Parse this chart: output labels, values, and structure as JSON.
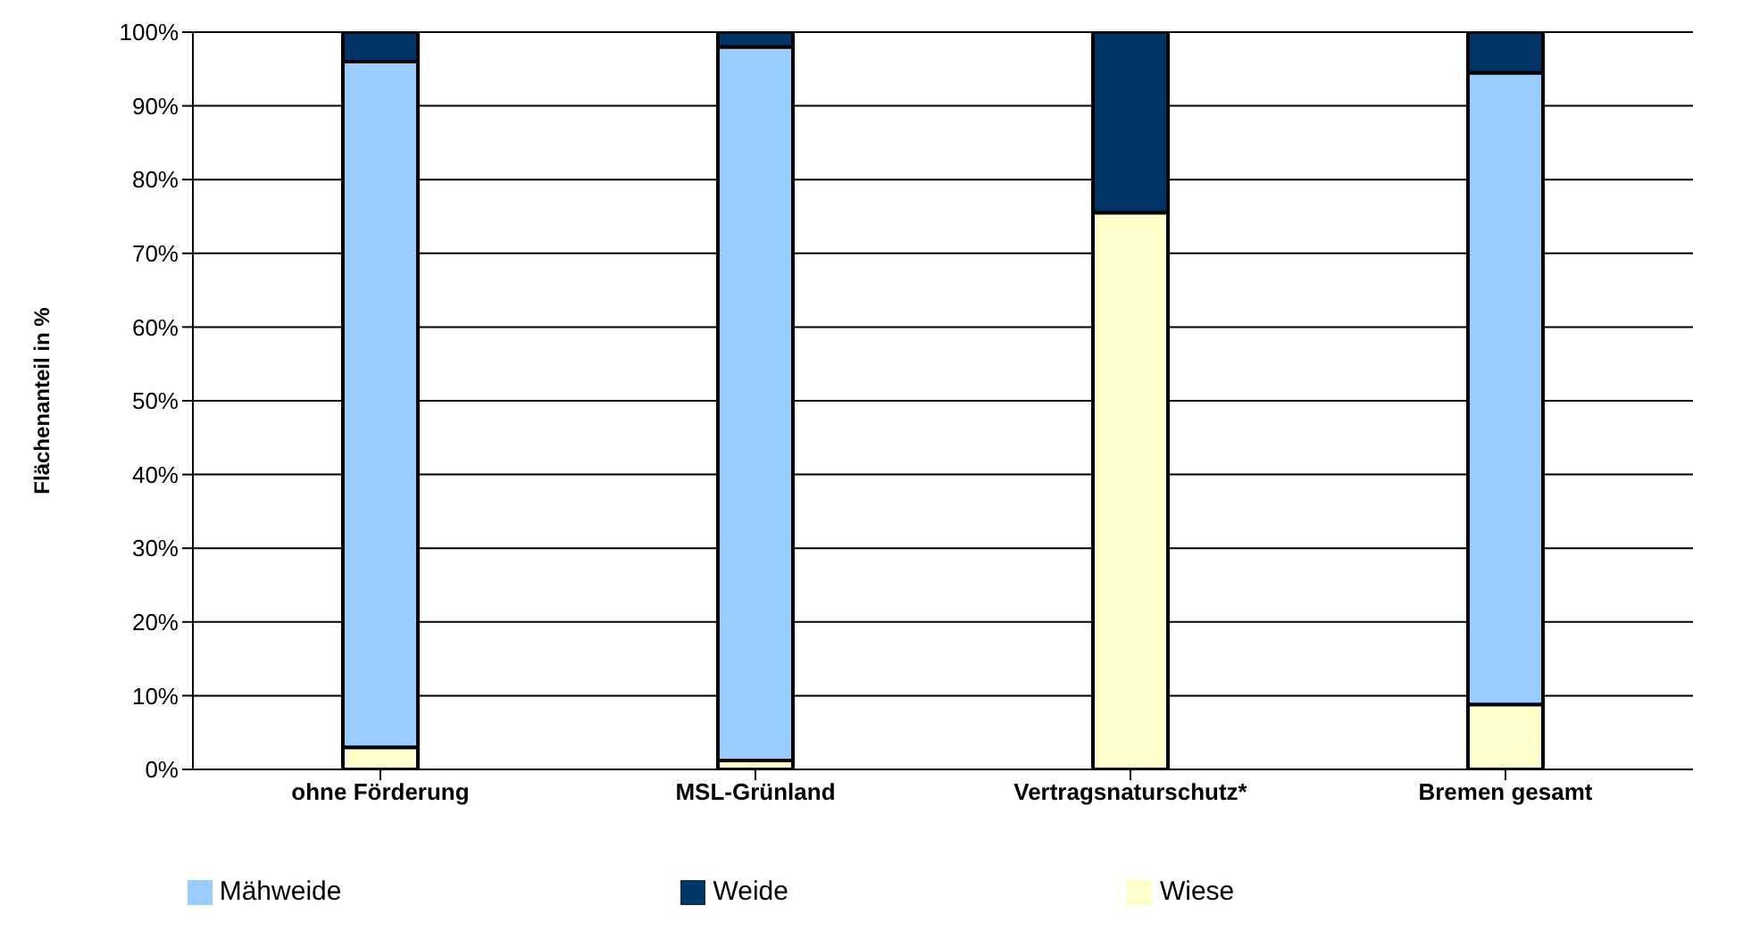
{
  "chart_data": {
    "type": "bar",
    "stacked": true,
    "ylabel": "Flächenanteil in %",
    "categories": [
      "ohne Förderung",
      "MSL-Grünland",
      "Vertragsnaturschutz*",
      "Bremen gesamt"
    ],
    "series": [
      {
        "name": "Wiese",
        "color": "#ffffcc",
        "values": [
          3,
          1.2,
          75.5,
          8.8
        ]
      },
      {
        "name": "Mähweide",
        "color": "#99ccff",
        "values": [
          93,
          96.8,
          0,
          85.7
        ]
      },
      {
        "name": "Weide",
        "color": "#003366",
        "values": [
          4,
          2,
          24.5,
          5.5
        ]
      }
    ],
    "ylim": [
      0,
      100
    ],
    "yticks": [
      {
        "value": 0,
        "label": "0%"
      },
      {
        "value": 10,
        "label": "10%"
      },
      {
        "value": 20,
        "label": "20%"
      },
      {
        "value": 30,
        "label": "30%"
      },
      {
        "value": 40,
        "label": "40%"
      },
      {
        "value": 50,
        "label": "50%"
      },
      {
        "value": 60,
        "label": "60%"
      },
      {
        "value": 70,
        "label": "70%"
      },
      {
        "value": 80,
        "label": "80%"
      },
      {
        "value": 90,
        "label": "90%"
      },
      {
        "value": 100,
        "label": "100%"
      }
    ],
    "grid": "y",
    "legend": "bottom"
  }
}
